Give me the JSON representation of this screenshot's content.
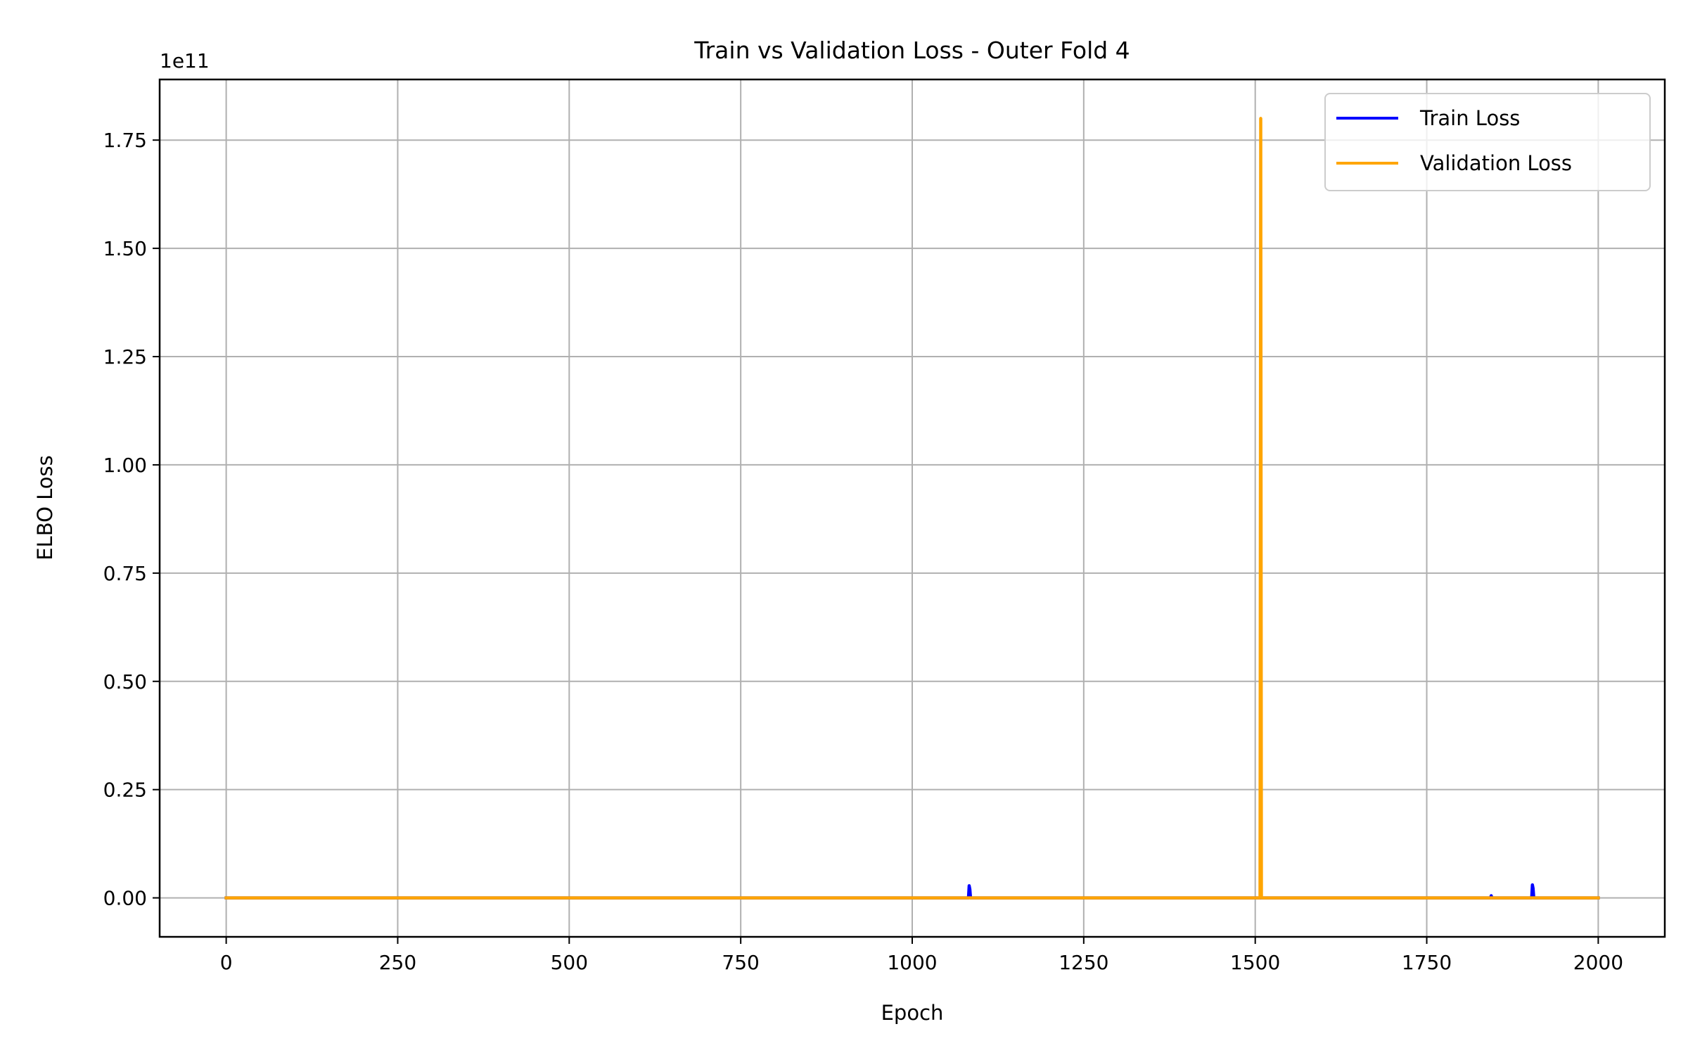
{
  "chart_data": {
    "type": "line",
    "title": "Train vs Validation Loss - Outer Fold 4",
    "xlabel": "Epoch",
    "ylabel": "ELBO Loss",
    "y_offset_label": "1e11",
    "xlim": [
      -97,
      2097
    ],
    "ylim": [
      -0.09,
      1.89
    ],
    "y_scale_factor": 100000000000,
    "x_ticks": [
      0,
      250,
      500,
      750,
      1000,
      1250,
      1500,
      1750,
      2000
    ],
    "x_tick_labels": [
      "0",
      "250",
      "500",
      "750",
      "1000",
      "1250",
      "1500",
      "1750",
      "2000"
    ],
    "y_ticks": [
      0,
      0.25,
      0.5,
      0.75,
      1.0,
      1.25,
      1.5,
      1.75
    ],
    "y_tick_labels": [
      "0.00",
      "0.25",
      "0.50",
      "0.75",
      "1.00",
      "1.25",
      "1.50",
      "1.75"
    ],
    "grid": true,
    "legend_position": "top-right",
    "series": [
      {
        "name": "Train Loss",
        "color": "#0000ff",
        "points": [
          [
            0,
            0
          ],
          [
            1082,
            0
          ],
          [
            1083,
            0.028
          ],
          [
            1084,
            0.02
          ],
          [
            1085,
            0
          ],
          [
            1843,
            0
          ],
          [
            1844,
            0.005
          ],
          [
            1845,
            0
          ],
          [
            1903,
            0
          ],
          [
            1904,
            0.03
          ],
          [
            1905,
            0.022
          ],
          [
            1906,
            0
          ],
          [
            2000,
            0
          ]
        ]
      },
      {
        "name": "Validation Loss",
        "color": "#ffa500",
        "points": [
          [
            0,
            0
          ],
          [
            1507,
            0
          ],
          [
            1508,
            1.8
          ],
          [
            1509,
            0
          ],
          [
            2000,
            0
          ]
        ]
      }
    ]
  }
}
